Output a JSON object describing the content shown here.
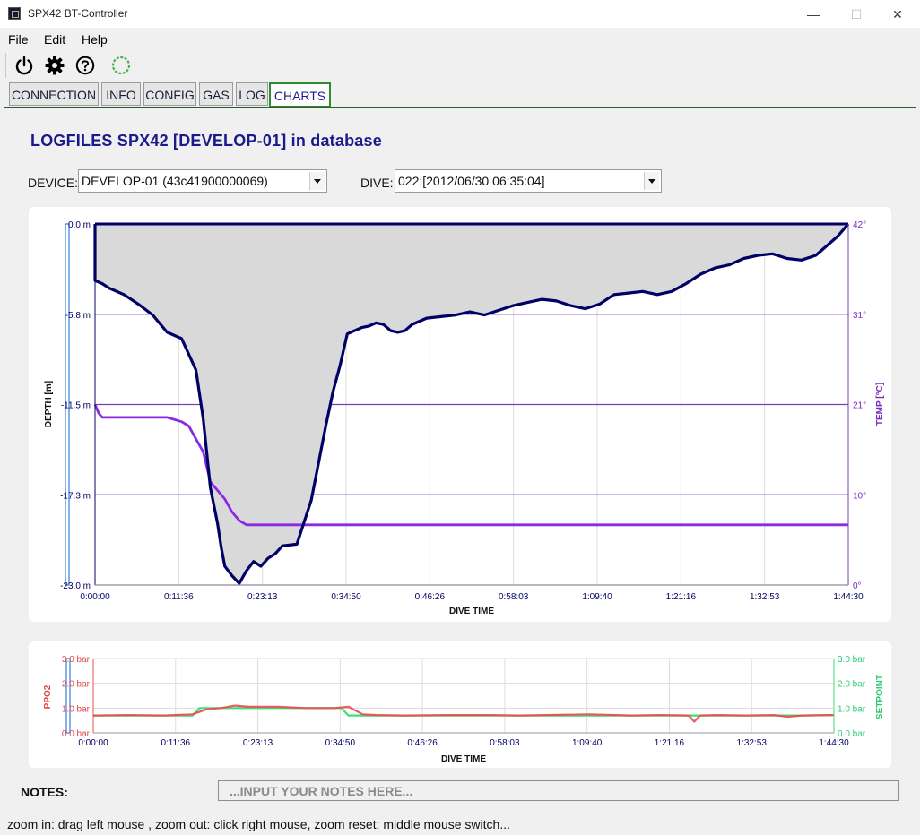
{
  "window": {
    "title": "SPX42 BT-Controller",
    "minimize": "—",
    "maximize": "☐",
    "close": "✕"
  },
  "menu": [
    {
      "label": "File"
    },
    {
      "label": "Edit"
    },
    {
      "label": "Help"
    }
  ],
  "toolbar": {
    "icons": [
      "power-icon",
      "gear-icon",
      "help-icon",
      "connection-status-ring"
    ],
    "status_color": "#4caf50"
  },
  "tabs": [
    {
      "label": "CONNECTION"
    },
    {
      "label": "INFO"
    },
    {
      "label": "CONFIG"
    },
    {
      "label": "GAS"
    },
    {
      "label": "LOG"
    },
    {
      "label": "CHARTS",
      "active": true
    }
  ],
  "heading": "LOGFILES SPX42 [DEVELOP-01] in database",
  "device": {
    "label": "DEVICE:",
    "value": "DEVELOP-01 (43c41900000069)"
  },
  "dive": {
    "label": "DIVE:",
    "value": "022:[2012/06/30 06:35:04]"
  },
  "colors": {
    "depth": "#000066",
    "temp": "#8a2be2",
    "fill": "#d9d9d9",
    "ppo2": "#ea4b4b",
    "setpoint": "#3dde78"
  },
  "chart_data": [
    {
      "type": "area",
      "xlabel": "DIVE TIME",
      "ylabel": "DEPTH [m]",
      "y2label": "TEMP [°C]",
      "x_ticks": [
        "0:00:00",
        "0:11:36",
        "0:23:13",
        "0:34:50",
        "0:46:26",
        "0:58:03",
        "1:09:40",
        "1:21:16",
        "1:32:53",
        "1:44:30"
      ],
      "y_ticks": [
        "0.0 m",
        "-5.8 m",
        "-11.5 m",
        "-17.3 m",
        "-23.0 m"
      ],
      "y2_ticks": [
        "42°",
        "31°",
        "21°",
        "10°",
        "0°"
      ],
      "xlim_min": [
        0,
        104.5
      ],
      "ylim": [
        -23,
        0
      ],
      "y2lim": [
        0,
        42
      ],
      "series": [
        {
          "name": "DEPTH [m]",
          "x": [
            0,
            1,
            2,
            4,
            6,
            8,
            10,
            12,
            14,
            15,
            16,
            17,
            17.5,
            18,
            19,
            20,
            21,
            22,
            23,
            24,
            25,
            26,
            28,
            30,
            32,
            33,
            34,
            35,
            36,
            37,
            38,
            39,
            40,
            41,
            42,
            43,
            44,
            45,
            46,
            48,
            50,
            52,
            54,
            56,
            58,
            60,
            62,
            64,
            66,
            68,
            70,
            72,
            74,
            76,
            78,
            80,
            82,
            84,
            86,
            88,
            90,
            92,
            94,
            96,
            98,
            100,
            102,
            103,
            104.5
          ],
          "y": [
            -3.6,
            -3.8,
            -4.1,
            -4.5,
            -5.1,
            -5.8,
            -6.9,
            -7.3,
            -9.3,
            -12.4,
            -16.8,
            -19.1,
            -20.6,
            -21.8,
            -22.4,
            -22.9,
            -22.1,
            -21.5,
            -21.8,
            -21.3,
            -21.0,
            -20.5,
            -20.4,
            -17.6,
            -12.9,
            -10.7,
            -9.0,
            -7.0,
            -6.8,
            -6.6,
            -6.5,
            -6.3,
            -6.4,
            -6.8,
            -6.9,
            -6.8,
            -6.4,
            -6.2,
            -6.0,
            -5.9,
            -5.8,
            -5.6,
            -5.8,
            -5.5,
            -5.2,
            -5.0,
            -4.8,
            -4.9,
            -5.2,
            -5.4,
            -5.1,
            -4.5,
            -4.4,
            -4.3,
            -4.5,
            -4.3,
            -3.8,
            -3.2,
            -2.8,
            -2.6,
            -2.2,
            -2.0,
            -1.9,
            -2.2,
            -2.3,
            -2.0,
            -1.2,
            -0.8,
            0.0
          ]
        },
        {
          "name": "TEMP [°C]",
          "axis": "y2",
          "x": [
            0,
            0.5,
            1,
            6,
            10,
            12,
            13,
            14,
            15,
            16,
            17,
            18,
            19,
            20,
            21,
            22,
            23,
            24,
            25,
            26,
            28,
            30,
            32,
            34,
            36,
            38,
            40,
            42,
            44,
            46,
            48,
            50,
            52,
            54,
            56,
            58,
            60,
            62,
            64,
            66,
            68,
            70,
            72,
            74,
            76,
            78,
            80,
            82,
            84,
            86,
            88,
            90,
            92,
            94,
            96,
            98,
            100,
            102,
            104.5
          ],
          "y": [
            21,
            20,
            19.5,
            19.5,
            19.5,
            19,
            18.5,
            17,
            15.5,
            12,
            11,
            10,
            8.5,
            7.5,
            7,
            7,
            7,
            7,
            7,
            7,
            7,
            7,
            7,
            7,
            7,
            7,
            7,
            7,
            7,
            7,
            7,
            7,
            7,
            7,
            7,
            7,
            7,
            7,
            7,
            7,
            7,
            7,
            7,
            7,
            7,
            7,
            7,
            7,
            7,
            7,
            7,
            7,
            7,
            7,
            7,
            7,
            7,
            7,
            7
          ]
        }
      ]
    },
    {
      "type": "line",
      "xlabel": "DIVE TIME",
      "ylabel": "PPO2",
      "y2label": "SETPOINT",
      "x_ticks": [
        "0:00:00",
        "0:11:36",
        "0:23:13",
        "0:34:50",
        "0:46:26",
        "0:58:03",
        "1:09:40",
        "1:21:16",
        "1:32:53",
        "1:44:30"
      ],
      "y_ticks": [
        "3.0 bar",
        "2.0 bar",
        "1.0 bar",
        "0.0 bar"
      ],
      "y2_ticks": [
        "3.0 bar",
        "2.0 bar",
        "1.0 bar",
        "0.0 bar"
      ],
      "ylim": [
        0,
        3
      ],
      "series": [
        {
          "name": "PPO2",
          "x": [
            0,
            5,
            10,
            14,
            16,
            18,
            20,
            22,
            26,
            30,
            34,
            36,
            38,
            40,
            44,
            50,
            56,
            60,
            64,
            70,
            76,
            80,
            84,
            84.8,
            85.6,
            88,
            92,
            96,
            98,
            100,
            104.5
          ],
          "y": [
            0.7,
            0.72,
            0.7,
            0.75,
            0.95,
            1.0,
            1.1,
            1.05,
            1.05,
            1.0,
            1.0,
            1.05,
            0.75,
            0.72,
            0.7,
            0.72,
            0.72,
            0.7,
            0.72,
            0.75,
            0.7,
            0.72,
            0.7,
            0.45,
            0.7,
            0.72,
            0.7,
            0.72,
            0.65,
            0.7,
            0.72
          ]
        },
        {
          "name": "SETPOINT",
          "x": [
            0,
            14,
            15,
            28,
            35,
            36,
            40,
            60,
            80,
            95,
            98,
            100,
            104.5
          ],
          "y": [
            0.7,
            0.7,
            1.0,
            1.0,
            1.0,
            0.7,
            0.7,
            0.7,
            0.7,
            0.7,
            0.7,
            0.7,
            0.72
          ]
        }
      ]
    }
  ],
  "notes": {
    "label": "NOTES:",
    "placeholder": "...INPUT YOUR NOTES HERE..."
  },
  "status_text": "zoom in: drag left mouse , zoom out: click right mouse, zoom reset: middle mouse switch..."
}
